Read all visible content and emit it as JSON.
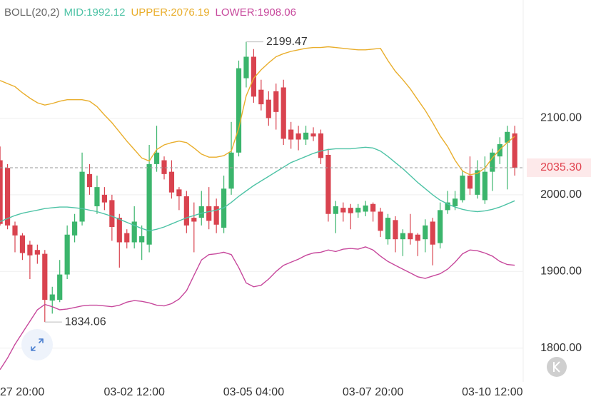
{
  "chart_data": {
    "type": "candlestick",
    "indicator": "BOLL(20,2)",
    "categories": [
      null,
      null,
      "27 20:00",
      null,
      null,
      null,
      null,
      null,
      null,
      null,
      null,
      null,
      null,
      null,
      null,
      null,
      null,
      null,
      "03-02 12:00",
      null,
      null,
      null,
      null,
      null,
      null,
      null,
      null,
      null,
      null,
      null,
      null,
      null,
      null,
      null,
      "03-05 04:00",
      null,
      null,
      null,
      null,
      null,
      null,
      null,
      null,
      null,
      null,
      null,
      null,
      null,
      null,
      null,
      "03-07 20:00",
      null,
      null,
      null,
      null,
      null,
      null,
      null,
      null,
      null,
      null,
      null,
      null,
      null,
      null,
      null,
      "03-10 12:00",
      null,
      null,
      null
    ],
    "open": [
      2045,
      2035,
      1960,
      1947,
      1935,
      1928,
      1923,
      1862,
      1863,
      1896,
      1947,
      1965,
      2027,
      1985,
      2000,
      1993,
      1970,
      1950,
      1938,
      1938,
      1935,
      2040,
      2045,
      2030,
      2007,
      1998,
      1970,
      1970,
      1985,
      1985,
      1957,
      2008,
      2055,
      2152,
      2180,
      2137,
      2124,
      2135,
      2140,
      2085,
      2080,
      2072,
      2080,
      2080,
      2052,
      1975,
      1983,
      1983,
      1977,
      1978,
      1988,
      1978,
      1942,
      1967,
      1942,
      1950,
      1948,
      1942,
      1965,
      1937,
      1980,
      1985,
      1993,
      2025,
      2000,
      1993,
      2030,
      2050,
      2068,
      2080
    ],
    "high": [
      2063,
      2040,
      1965,
      1950,
      1940,
      1935,
      1928,
      1880,
      1915,
      1960,
      1975,
      2055,
      2040,
      2025,
      2010,
      2000,
      1975,
      1955,
      1985,
      1960,
      2065,
      2090,
      2050,
      2045,
      2010,
      2005,
      1990,
      2005,
      2010,
      1995,
      2025,
      2095,
      2175,
      2199.47,
      2190,
      2150,
      2135,
      2145,
      2150,
      2095,
      2090,
      2090,
      2088,
      2085,
      2060,
      1992,
      1990,
      1988,
      1988,
      1992,
      1990,
      1983,
      1975,
      1972,
      1955,
      1975,
      1950,
      1968,
      1970,
      1990,
      2005,
      2005,
      2032,
      2050,
      2045,
      2050,
      2060,
      2075,
      2090,
      2090
    ],
    "low": [
      1960,
      1955,
      1925,
      1915,
      1890,
      1910,
      1834.06,
      1845,
      1860,
      1890,
      1938,
      1960,
      2000,
      1975,
      1980,
      1940,
      1905,
      1930,
      1930,
      1915,
      1925,
      2030,
      2020,
      1995,
      1980,
      1950,
      1925,
      1960,
      1955,
      1950,
      1950,
      2000,
      2050,
      2140,
      2120,
      2110,
      2090,
      2085,
      2065,
      2060,
      2058,
      2065,
      2070,
      2040,
      1965,
      1950,
      1965,
      1955,
      1970,
      1972,
      1965,
      1945,
      1935,
      1925,
      1920,
      1935,
      1920,
      1925,
      1908,
      1930,
      1975,
      1980,
      1990,
      2000,
      1995,
      1988,
      2005,
      2040,
      2007,
      2025
    ],
    "close": [
      1962,
      1960,
      1947,
      1924,
      1921,
      1922,
      1863,
      1870,
      1896,
      1948,
      1965,
      2030,
      2010,
      2010,
      1990,
      1958,
      1938,
      1938,
      1965,
      1946,
      2040,
      2055,
      2027,
      2003,
      1998,
      1960,
      1965,
      1985,
      1966,
      1961,
      2008,
      2055,
      2165,
      2180,
      2128,
      2118,
      2100,
      2108,
      2073,
      2072,
      2072,
      2081,
      2076,
      2048,
      1975,
      1985,
      1977,
      1976,
      1983,
      1986,
      1978,
      1953,
      1970,
      1942,
      1950,
      1942,
      1940,
      1960,
      1935,
      1980,
      1990,
      1995,
      2025,
      2008,
      2032,
      2030,
      2055,
      2066,
      2082,
      2035.3
    ],
    "up_color": "#3bb56c",
    "down_color": "#d9434f",
    "series": [
      {
        "name": "MID:",
        "color": "#4ec3a6",
        "values": [
          1965,
          1969,
          1973,
          1976,
          1978,
          1980,
          1982,
          1983,
          1984,
          1984,
          1983,
          1982,
          1980,
          1978,
          1975,
          1972,
          1968,
          1964,
          1960,
          1956,
          1953,
          1955,
          1958,
          1962,
          1966,
          1970,
          1973,
          1976,
          1978,
          1980,
          1983,
          1990,
          1998,
          2005,
          2012,
          2018,
          2024,
          2030,
          2036,
          2042,
          2046,
          2050,
          2054,
          2057,
          2059,
          2060,
          2060,
          2060,
          2061,
          2062,
          2061,
          2057,
          2050,
          2042,
          2034,
          2025,
          2016,
          2008,
          2000,
          1993,
          1988,
          1984,
          1981,
          1979,
          1978,
          1979,
          1981,
          1984,
          1988,
          1992.12
        ]
      },
      {
        "name": "UPPER:",
        "color": "#e9ae2c",
        "values": [
          2149,
          2145,
          2141,
          2133,
          2126,
          2120,
          2117,
          2119,
          2122,
          2124,
          2124,
          2124,
          2122,
          2115,
          2104,
          2094,
          2082,
          2070,
          2059,
          2048,
          2044,
          2059,
          2065,
          2068,
          2070,
          2068,
          2061,
          2053,
          2049,
          2049,
          2051,
          2057,
          2087,
          2129,
          2152,
          2163,
          2172,
          2180,
          2184,
          2187,
          2189,
          2191,
          2192,
          2192,
          2193,
          2192,
          2191,
          2190,
          2189,
          2189,
          2190,
          2191,
          2175,
          2161,
          2150,
          2138,
          2124,
          2110,
          2094,
          2077,
          2063,
          2045,
          2031,
          2026,
          2028,
          2035,
          2048,
          2059,
          2068,
          2076.19
        ]
      },
      {
        "name": "LOWER:",
        "color": "#c7489c",
        "values": [
          1772,
          1787,
          1805,
          1820,
          1835,
          1850,
          1857,
          1854,
          1850,
          1851,
          1853,
          1855,
          1856,
          1856,
          1855,
          1854,
          1856,
          1860,
          1862,
          1861,
          1859,
          1856,
          1855,
          1858,
          1864,
          1875,
          1895,
          1915,
          1922,
          1923,
          1925,
          1922,
          1905,
          1885,
          1880,
          1882,
          1890,
          1900,
          1908,
          1912,
          1916,
          1921,
          1924,
          1925,
          1928,
          1926,
          1929,
          1930,
          1929,
          1932,
          1928,
          1920,
          1913,
          1908,
          1903,
          1898,
          1893,
          1891,
          1894,
          1897,
          1903,
          1912,
          1923,
          1928,
          1927,
          1924,
          1920,
          1913,
          1909,
          1908.06
        ]
      }
    ],
    "ylim": [
      1756,
      2254
    ],
    "yticks": [
      {
        "value": 1800,
        "label": "1800.00"
      },
      {
        "value": 1900,
        "label": "1900.00"
      },
      {
        "value": 2000,
        "label": "2000.00"
      },
      {
        "value": 2100,
        "label": "2100.00"
      }
    ],
    "grid": true,
    "last_price": {
      "value": 2035.3,
      "label": "2035.30"
    }
  }
}
